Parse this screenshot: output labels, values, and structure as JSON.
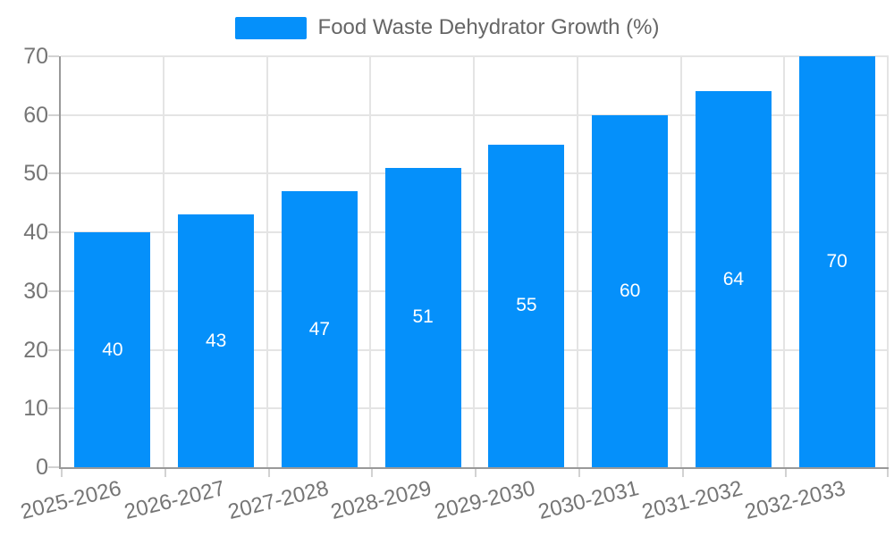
{
  "legend": {
    "label": "Food Waste Dehydrator Growth (%)"
  },
  "colors": {
    "bar": "#0590fa",
    "grid": "#e4e4e4",
    "axis": "#999999",
    "tick": "#d2d2d2",
    "tick_text": "#757575",
    "legend_text": "#666666",
    "value_text": "#ffffff",
    "background": "#ffffff"
  },
  "chart_data": {
    "type": "bar",
    "title": "Food Waste Dehydrator Growth (%)",
    "categories": [
      "2025-2026",
      "2026-2027",
      "2027-2028",
      "2028-2029",
      "2029-2030",
      "2030-2031",
      "2031-2032",
      "2032-2033"
    ],
    "values": [
      40,
      43,
      47,
      51,
      55,
      60,
      64,
      70
    ],
    "xlabel": "",
    "ylabel": "",
    "ylim": [
      0,
      70
    ],
    "yticks": [
      0,
      10,
      20,
      30,
      40,
      50,
      60,
      70
    ],
    "grid": true,
    "legend_position": "top-center",
    "value_labels": "inside-center",
    "x_label_rotation_deg": -14
  }
}
